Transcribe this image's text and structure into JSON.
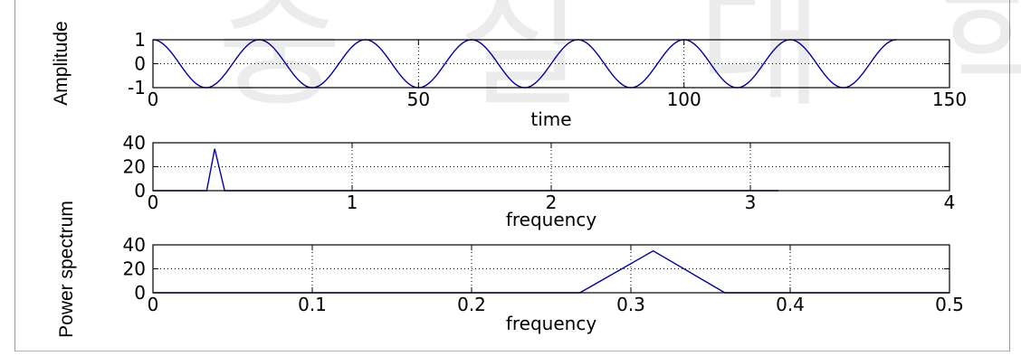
{
  "watermark": "숭 실 대 학 교",
  "chart_data": [
    {
      "type": "line",
      "title": "",
      "xlabel": "time",
      "ylabel": "Amplitude",
      "xlim": [
        0,
        150
      ],
      "ylim": [
        -1,
        1
      ],
      "xticks": [
        "0",
        "50",
        "100",
        "150"
      ],
      "yticks": [
        "-1",
        "0",
        "1"
      ],
      "grid": "dotted",
      "color": "#0000aa",
      "series": [
        {
          "function": "cos(2*pi*t/20)",
          "t_range": [
            0,
            140
          ],
          "period": 20
        }
      ]
    },
    {
      "type": "line",
      "title": "",
      "xlabel": "frequency",
      "ylabel": "",
      "xlim": [
        0,
        4
      ],
      "ylim": [
        0,
        40
      ],
      "xticks": [
        "0",
        "1",
        "2",
        "3",
        "4"
      ],
      "yticks": [
        "0",
        "20",
        "40"
      ],
      "grid": "dotted",
      "color": "#0000aa",
      "series": [
        {
          "x": [
            0,
            0.27,
            0.31,
            0.36,
            3.14
          ],
          "y": [
            0,
            0,
            35,
            0,
            0
          ]
        }
      ]
    },
    {
      "type": "line",
      "title": "",
      "xlabel": "frequency",
      "ylabel": "Power spectrum",
      "xlim": [
        0,
        0.5
      ],
      "ylim": [
        0,
        40
      ],
      "xticks": [
        "0",
        "0.1",
        "0.2",
        "0.3",
        "0.4",
        "0.5"
      ],
      "yticks": [
        "0",
        "20",
        "40"
      ],
      "grid": "dotted",
      "color": "#0000aa",
      "series": [
        {
          "x": [
            0,
            0.268,
            0.314,
            0.359,
            0.5
          ],
          "y": [
            0,
            0,
            35,
            0,
            0
          ]
        }
      ]
    }
  ]
}
